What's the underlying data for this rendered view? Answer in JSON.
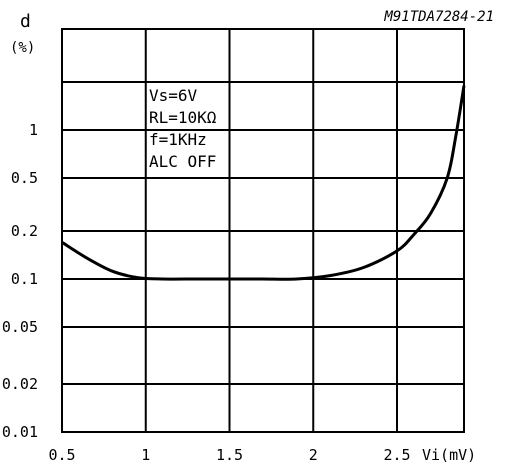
{
  "chart_data": {
    "type": "line",
    "reference_code": "M91TDA7284-21",
    "ylabel": "d",
    "ylabel_unit": "(%)",
    "xlabel": "Vi(mV)",
    "xlim": [
      0.5,
      2.9
    ],
    "ylim": [
      0.01,
      3
    ],
    "y_scale": "log",
    "grid": true,
    "x_ticks": [
      0.5,
      1,
      1.5,
      2,
      2.5
    ],
    "x_tick_labels": [
      "0.5",
      "1",
      "1.5",
      "2",
      "2.5"
    ],
    "y_ticks": [
      0.01,
      0.02,
      0.05,
      0.1,
      0.2,
      0.5,
      1
    ],
    "y_tick_labels": [
      "0.01",
      "0.02",
      "0.05",
      "0.1",
      "0.2",
      "0.5",
      "1"
    ],
    "annotations": [
      "Vs=6V",
      "RL=10KΩ",
      "f=1KHz",
      "ALC OFF"
    ],
    "series": [
      {
        "x": [
          0.5,
          0.65,
          0.8,
          0.95,
          1.1,
          1.3,
          1.5,
          1.7,
          1.9,
          2.1,
          2.3,
          2.5,
          2.6,
          2.7,
          2.8,
          2.85,
          2.9
        ],
        "values": [
          0.17,
          0.135,
          0.112,
          0.102,
          0.1,
          0.1,
          0.1,
          0.1,
          0.1,
          0.105,
          0.118,
          0.15,
          0.19,
          0.27,
          0.5,
          0.9,
          1.9
        ]
      }
    ]
  }
}
